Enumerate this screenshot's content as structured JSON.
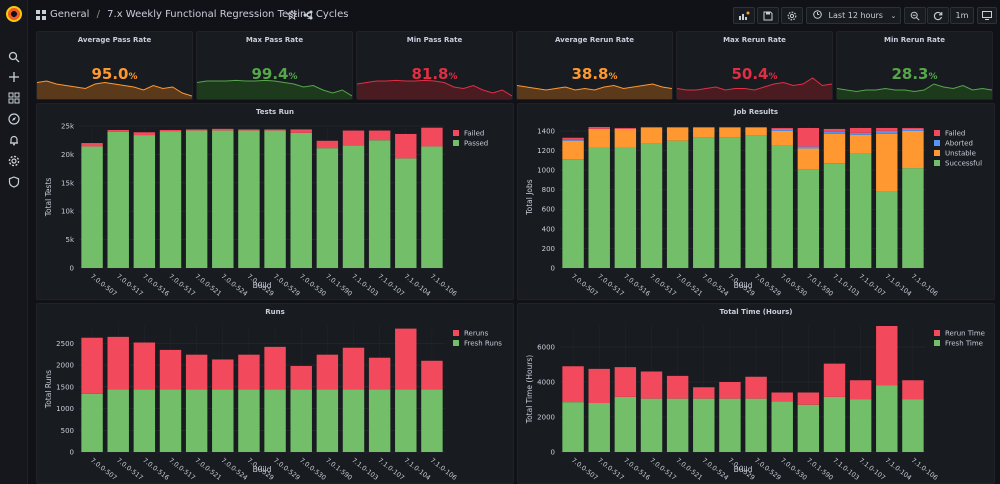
{
  "nav": {
    "icons": [
      "search-icon",
      "plus-icon",
      "dashboards-icon",
      "explore-icon",
      "alerting-icon",
      "settings-icon",
      "shield-icon"
    ]
  },
  "header": {
    "folder": "General",
    "separator": "/",
    "title": "7.x Weekly Functional Regression Testing Cycles",
    "time_range": "Last 12 hours",
    "refresh_interval": "1m"
  },
  "stats": [
    {
      "title": "Average Pass Rate",
      "value": "95.0",
      "unit": "%",
      "color": "#ff9830",
      "fill": "#5a3a1a"
    },
    {
      "title": "Max Pass Rate",
      "value": "99.4",
      "unit": "%",
      "color": "#56a64b",
      "fill": "#1e3a1c"
    },
    {
      "title": "Min Pass Rate",
      "value": "81.8",
      "unit": "%",
      "color": "#e02f44",
      "fill": "#4a1c22"
    },
    {
      "title": "Average Rerun Rate",
      "value": "38.8",
      "unit": "%",
      "color": "#ff9830",
      "fill": "#5a3a1a"
    },
    {
      "title": "Max Rerun Rate",
      "value": "50.4",
      "unit": "%",
      "color": "#e02f44",
      "fill": "#4a1c22"
    },
    {
      "title": "Min Rerun Rate",
      "value": "28.3",
      "unit": "%",
      "color": "#56a64b",
      "fill": "#1e3a1c"
    }
  ],
  "colors": {
    "passed": "#73bf69",
    "failed": "#f2495c",
    "aborted": "#5794f2",
    "unstable": "#ff9830"
  },
  "chart_data": [
    {
      "type": "bar",
      "title": "Tests Run",
      "xlabel": "Build",
      "ylabel": "Total Tests",
      "categories": [
        "7.0.0-507",
        "7.0.0-517",
        "7.0.0-516",
        "7.0.0-517",
        "7.0.0-521",
        "7.0.0-524",
        "7.0.0-529",
        "7.0.0-529",
        "7.0.0-530",
        "7.0.1-590",
        "7.1.0-103",
        "7.1.0-107",
        "7.1.0-104",
        "7.1.0-106"
      ],
      "series": [
        {
          "name": "Passed",
          "values": [
            21400,
            24000,
            23400,
            24100,
            24200,
            24200,
            24200,
            24200,
            23800,
            21100,
            21600,
            22500,
            19300,
            21400
          ]
        },
        {
          "name": "Failed",
          "values": [
            600,
            300,
            500,
            200,
            200,
            300,
            200,
            200,
            600,
            1300,
            2600,
            1700,
            4300,
            3300
          ]
        }
      ],
      "ylim": [
        0,
        25000
      ],
      "yticks": [
        "0",
        "5k",
        "10k",
        "15k",
        "20k",
        "25k"
      ],
      "legend": "top-right"
    },
    {
      "type": "bar",
      "title": "Job Results",
      "xlabel": "Build",
      "ylabel": "Total Jobs",
      "categories": [
        "7.0.0-507",
        "7.0.0-517",
        "7.0.0-516",
        "7.0.0-517",
        "7.0.0-521",
        "7.0.0-524",
        "7.0.0-529",
        "7.0.0-529",
        "7.0.0-530",
        "7.0.1-590",
        "7.1.0-103",
        "7.1.0-107",
        "7.1.0-104",
        "7.1.0-106"
      ],
      "series": [
        {
          "name": "Successful",
          "values": [
            1110,
            1230,
            1230,
            1270,
            1300,
            1330,
            1330,
            1350,
            1250,
            1010,
            1070,
            1170,
            780,
            1020
          ]
        },
        {
          "name": "Unstable",
          "values": [
            190,
            190,
            190,
            160,
            130,
            100,
            100,
            80,
            150,
            210,
            300,
            190,
            590,
            380
          ]
        },
        {
          "name": "Aborted",
          "values": [
            10,
            0,
            0,
            0,
            0,
            0,
            0,
            0,
            20,
            20,
            20,
            20,
            30,
            20
          ]
        },
        {
          "name": "Failed",
          "values": [
            20,
            20,
            10,
            10,
            10,
            10,
            10,
            10,
            10,
            190,
            30,
            50,
            30,
            10
          ]
        }
      ],
      "ylim": [
        0,
        1450
      ],
      "yticks": [
        "0",
        "200",
        "400",
        "600",
        "800",
        "1000",
        "1200",
        "1400"
      ],
      "legend": "top-right"
    },
    {
      "type": "bar",
      "title": "Runs",
      "xlabel": "Build",
      "ylabel": "Total Runs",
      "categories": [
        "7.0.0-507",
        "7.0.0-517",
        "7.0.0-516",
        "7.0.0-517",
        "7.0.0-521",
        "7.0.0-524",
        "7.0.0-529",
        "7.0.0-529",
        "7.0.0-530",
        "7.0.1-590",
        "7.1.0-103",
        "7.1.0-107",
        "7.1.0-104",
        "7.1.0-106"
      ],
      "series": [
        {
          "name": "Fresh Runs",
          "values": [
            1340,
            1440,
            1440,
            1440,
            1440,
            1440,
            1440,
            1440,
            1440,
            1440,
            1440,
            1440,
            1440,
            1440
          ]
        },
        {
          "name": "Reruns",
          "values": [
            1290,
            1210,
            1080,
            910,
            800,
            690,
            800,
            980,
            540,
            800,
            960,
            730,
            1400,
            660
          ]
        }
      ],
      "ylim": [
        0,
        2900
      ],
      "yticks": [
        "0",
        "500",
        "1000",
        "1500",
        "2000",
        "2500"
      ],
      "legend": "top-right"
    },
    {
      "type": "bar",
      "title": "Total Time (Hours)",
      "xlabel": "Build",
      "ylabel": "Total Time (Hours)",
      "categories": [
        "7.0.0-507",
        "7.0.0-517",
        "7.0.0-516",
        "7.0.0-517",
        "7.0.0-521",
        "7.0.0-524",
        "7.0.0-529",
        "7.0.0-529",
        "7.0.0-530",
        "7.0.1-590",
        "7.1.0-103",
        "7.1.0-107",
        "7.1.0-104",
        "7.1.0-106"
      ],
      "series": [
        {
          "name": "Fresh Time",
          "values": [
            2850,
            2800,
            3150,
            3050,
            3050,
            3050,
            3050,
            3050,
            2900,
            2700,
            3150,
            3000,
            3800,
            3000
          ]
        },
        {
          "name": "Rerun Time",
          "values": [
            2050,
            1950,
            1700,
            1550,
            1300,
            650,
            950,
            1250,
            500,
            700,
            1900,
            1100,
            3400,
            1100
          ]
        }
      ],
      "ylim": [
        0,
        7200
      ],
      "yticks": [
        "0",
        "2000",
        "4000",
        "6000"
      ],
      "legend": "top-right"
    }
  ]
}
